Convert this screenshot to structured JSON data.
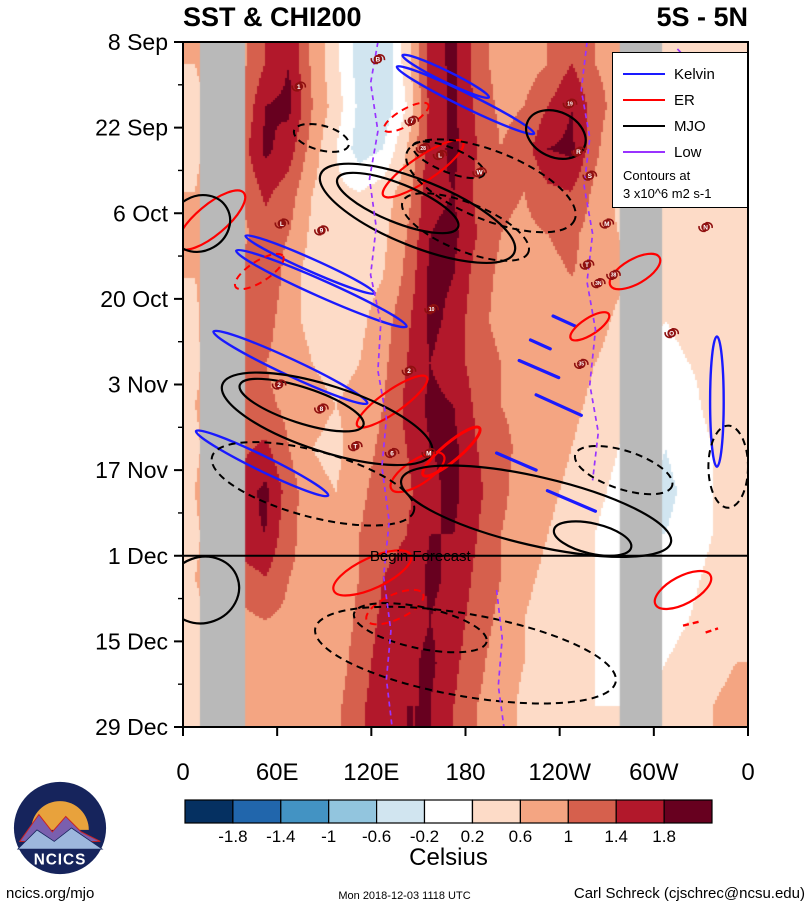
{
  "header": {
    "title": "SST & CHI200",
    "region": "5S - 5N"
  },
  "legend": {
    "items": [
      {
        "label": "Kelvin",
        "color": "#1a1aff"
      },
      {
        "label": "ER",
        "color": "#ff0000"
      },
      {
        "label": "MJO",
        "color": "#000000"
      },
      {
        "label": "Low",
        "color": "#9933ff"
      }
    ],
    "note1": "Contours at",
    "note2": "3 x10^6 m2 s-1"
  },
  "chart_data": {
    "type": "heatmap",
    "title": "SST & CHI200",
    "region_label": "5S - 5N",
    "x_axis": {
      "ticks": [
        "0",
        "60E",
        "120E",
        "180",
        "120W",
        "60W",
        "0"
      ],
      "range_deg": [
        0,
        360
      ]
    },
    "y_axis": {
      "ticks": [
        "8 Sep",
        "22 Sep",
        "6 Oct",
        "20 Oct",
        "3 Nov",
        "17 Nov",
        "1 Dec",
        "15 Dec",
        "29 Dec"
      ]
    },
    "colorbar": {
      "label": "Celsius",
      "levels": [
        -1.8,
        -1.4,
        -1,
        -0.6,
        -0.2,
        0.2,
        0.6,
        1,
        1.4,
        1.8
      ],
      "tick_labels": [
        "-1.8",
        "-1.4",
        "-1",
        "-0.6",
        "-0.2",
        "0.2",
        "0.6",
        "1",
        "1.4",
        "1.8"
      ],
      "colors": [
        "#053061",
        "#2166ac",
        "#4393c3",
        "#92c5de",
        "#d1e5f0",
        "#ffffff",
        "#fddbc7",
        "#f4a582",
        "#d6604d",
        "#b2182b",
        "#67001f"
      ]
    },
    "land_color": "#b9b9b9",
    "land_mask_frac": [
      {
        "x0": 0.03,
        "x1": 0.11
      },
      {
        "x0": 0.773,
        "x1": 0.848
      }
    ],
    "forecast_line": {
      "label": "Begin Forecast",
      "y_frac": 0.75,
      "label_x_frac": 0.42
    },
    "grid_values": [
      [
        0.6,
        0.8,
        0.9,
        1.4,
        1.8,
        0.9,
        0.3,
        -0.4,
        -0.6,
        0.4,
        1.6,
        1.9,
        1.2,
        0.8,
        0.8,
        1.0,
        1.4,
        1.0,
        0.8,
        0.6,
        0.4,
        0.6,
        0.3,
        0.5
      ],
      [
        0.5,
        0.7,
        1.0,
        1.8,
        1.9,
        1.0,
        0.4,
        -0.3,
        -0.5,
        0.2,
        1.5,
        1.9,
        1.3,
        0.9,
        1.0,
        1.4,
        1.8,
        1.2,
        0.8,
        0.5,
        0.3,
        0.4,
        0.3,
        0.4
      ],
      [
        0.5,
        0.8,
        1.2,
        1.9,
        1.6,
        0.8,
        0.2,
        -0.4,
        -0.2,
        0.6,
        1.6,
        1.9,
        1.4,
        1.0,
        1.2,
        1.8,
        1.9,
        1.1,
        0.6,
        0.4,
        0.3,
        0.5,
        0.4,
        0.4
      ],
      [
        0.6,
        0.9,
        1.0,
        1.5,
        1.2,
        0.6,
        0.3,
        0.2,
        0.4,
        0.8,
        1.7,
        1.8,
        1.3,
        1.1,
        1.0,
        1.3,
        1.4,
        0.9,
        0.5,
        0.4,
        0.3,
        0.4,
        0.4,
        0.5
      ],
      [
        0.7,
        0.8,
        0.9,
        1.2,
        1.0,
        0.5,
        0.4,
        0.3,
        0.5,
        1.0,
        1.8,
        1.9,
        1.4,
        1.0,
        0.9,
        1.0,
        1.1,
        0.8,
        0.6,
        0.4,
        0.3,
        0.3,
        0.5,
        0.6
      ],
      [
        0.6,
        0.9,
        1.1,
        1.4,
        0.8,
        0.4,
        0.3,
        0.4,
        0.6,
        1.1,
        1.9,
        1.8,
        1.2,
        0.9,
        0.8,
        0.9,
        1.0,
        0.9,
        0.7,
        0.5,
        0.2,
        0.2,
        0.4,
        0.5
      ],
      [
        0.5,
        1.0,
        1.4,
        1.2,
        0.7,
        0.5,
        0.4,
        0.5,
        0.8,
        1.3,
        1.9,
        1.7,
        1.1,
        0.9,
        0.9,
        1.0,
        0.9,
        0.8,
        0.5,
        0.3,
        0.2,
        0.3,
        0.4,
        0.4
      ],
      [
        0.5,
        0.9,
        1.2,
        1.0,
        0.8,
        0.6,
        0.5,
        0.6,
        0.9,
        1.4,
        1.8,
        1.6,
        1.2,
        1.0,
        0.8,
        0.9,
        0.8,
        0.6,
        0.4,
        0.2,
        0.1,
        0.2,
        0.3,
        0.4
      ],
      [
        0.6,
        0.8,
        1.0,
        1.1,
        0.9,
        0.7,
        0.6,
        0.7,
        1.0,
        1.5,
        1.9,
        1.8,
        1.3,
        1.0,
        0.9,
        0.8,
        0.7,
        0.5,
        0.3,
        0.1,
        -0.1,
        0.1,
        0.3,
        0.4
      ],
      [
        0.5,
        0.9,
        1.3,
        1.5,
        1.0,
        0.6,
        0.5,
        0.8,
        1.1,
        1.4,
        1.8,
        1.9,
        1.4,
        1.1,
        0.9,
        0.8,
        0.6,
        0.4,
        0.2,
        0.0,
        -0.2,
        0.0,
        0.2,
        0.3
      ],
      [
        0.6,
        1.0,
        1.6,
        1.9,
        1.2,
        0.7,
        0.6,
        0.9,
        1.2,
        1.3,
        1.7,
        1.9,
        1.5,
        1.1,
        0.8,
        0.7,
        0.5,
        0.3,
        0.1,
        -0.2,
        -0.3,
        -0.1,
        0.2,
        0.3
      ],
      [
        0.5,
        0.9,
        1.7,
        1.8,
        1.1,
        0.8,
        0.7,
        1.0,
        1.3,
        1.4,
        1.8,
        1.8,
        1.4,
        1.0,
        0.8,
        0.6,
        0.4,
        0.2,
        0.0,
        -0.2,
        -0.2,
        0.0,
        0.2,
        0.4
      ],
      [
        0.6,
        0.8,
        1.2,
        1.4,
        1.0,
        0.9,
        0.8,
        1.0,
        1.4,
        1.5,
        1.9,
        1.7,
        1.3,
        1.0,
        0.7,
        0.5,
        0.3,
        0.2,
        0.0,
        -0.1,
        -0.1,
        0.1,
        0.3,
        0.5
      ],
      [
        0.5,
        0.7,
        0.9,
        1.0,
        0.9,
        0.8,
        0.7,
        1.1,
        1.5,
        1.6,
        1.8,
        1.6,
        1.2,
        0.9,
        0.6,
        0.4,
        0.3,
        0.2,
        0.1,
        0.0,
        0.1,
        0.2,
        0.4,
        0.5
      ],
      [
        0.4,
        0.6,
        0.8,
        0.9,
        0.8,
        0.7,
        0.8,
        1.2,
        1.6,
        1.7,
        1.9,
        1.5,
        1.1,
        0.8,
        0.6,
        0.4,
        0.3,
        0.2,
        0.1,
        0.1,
        0.2,
        0.3,
        0.5,
        0.6
      ],
      [
        0.4,
        0.5,
        0.7,
        0.8,
        0.7,
        0.8,
        0.9,
        1.3,
        1.7,
        1.8,
        1.8,
        1.4,
        1.0,
        0.8,
        0.5,
        0.4,
        0.3,
        0.2,
        0.2,
        0.2,
        0.3,
        0.4,
        0.6,
        0.7
      ]
    ],
    "waves": {
      "kelvin": {
        "color": "#1a1aff",
        "ellipses": [
          {
            "cx": 0.5,
            "cy": 0.085,
            "rx": 0.135,
            "ry": 0.01,
            "rot": 26
          },
          {
            "cx": 0.465,
            "cy": 0.05,
            "rx": 0.085,
            "ry": 0.008,
            "rot": 26
          },
          {
            "cx": 0.245,
            "cy": 0.36,
            "rx": 0.165,
            "ry": 0.012,
            "rot": 24
          },
          {
            "cx": 0.225,
            "cy": 0.325,
            "rx": 0.125,
            "ry": 0.009,
            "rot": 24
          },
          {
            "cx": 0.19,
            "cy": 0.475,
            "rx": 0.15,
            "ry": 0.012,
            "rot": 25
          },
          {
            "cx": 0.14,
            "cy": 0.615,
            "rx": 0.13,
            "ry": 0.011,
            "rot": 26
          },
          {
            "cx": 0.945,
            "cy": 0.525,
            "rx": 0.012,
            "ry": 0.095,
            "rot": 0
          }
        ],
        "segments": [
          [
            0.595,
            0.465,
            0.665,
            0.49
          ],
          [
            0.625,
            0.515,
            0.705,
            0.545
          ],
          [
            0.555,
            0.6,
            0.625,
            0.625
          ],
          [
            0.645,
            0.655,
            0.73,
            0.685
          ],
          [
            0.655,
            0.4,
            0.695,
            0.415
          ],
          [
            0.615,
            0.435,
            0.65,
            0.448
          ]
        ]
      },
      "er": {
        "color": "#ff0000",
        "ellipses": [
          {
            "cx": 0.425,
            "cy": 0.185,
            "rx": 0.085,
            "ry": 0.018,
            "rot": -34
          },
          {
            "cx": 0.05,
            "cy": 0.26,
            "rx": 0.075,
            "ry": 0.022,
            "rot": -40
          },
          {
            "cx": 0.37,
            "cy": 0.525,
            "rx": 0.075,
            "ry": 0.016,
            "rot": -35
          },
          {
            "cx": 0.475,
            "cy": 0.598,
            "rx": 0.065,
            "ry": 0.013,
            "rot": -40,
            "w": 3
          },
          {
            "cx": 0.415,
            "cy": 0.628,
            "rx": 0.055,
            "ry": 0.018,
            "rot": -33
          },
          {
            "cx": 0.335,
            "cy": 0.775,
            "rx": 0.075,
            "ry": 0.022,
            "rot": -25
          },
          {
            "cx": 0.885,
            "cy": 0.8,
            "rx": 0.055,
            "ry": 0.02,
            "rot": -28
          },
          {
            "cx": 0.8,
            "cy": 0.335,
            "rx": 0.05,
            "ry": 0.018,
            "rot": -30
          },
          {
            "cx": 0.72,
            "cy": 0.415,
            "rx": 0.04,
            "ry": 0.012,
            "rot": -33
          }
        ],
        "ellipses_dashed": [
          {
            "cx": 0.395,
            "cy": 0.11,
            "rx": 0.045,
            "ry": 0.012,
            "rot": -30
          },
          {
            "cx": 0.135,
            "cy": 0.335,
            "rx": 0.05,
            "ry": 0.015,
            "rot": -33
          },
          {
            "cx": 0.375,
            "cy": 0.825,
            "rx": 0.055,
            "ry": 0.018,
            "rot": -25
          }
        ],
        "segments_dashed": [
          [
            0.885,
            0.852,
            0.915,
            0.846
          ],
          [
            0.925,
            0.862,
            0.947,
            0.856
          ]
        ]
      },
      "mjo": {
        "color": "#000000",
        "ellipses": [
          {
            "cx": 0.415,
            "cy": 0.25,
            "rx": 0.185,
            "ry": 0.048,
            "rot": 22
          },
          {
            "cx": 0.38,
            "cy": 0.235,
            "rx": 0.115,
            "ry": 0.028,
            "rot": 22
          },
          {
            "cx": 0.03,
            "cy": 0.265,
            "rx": 0.055,
            "ry": 0.04,
            "rot": -30
          },
          {
            "cx": 0.66,
            "cy": 0.135,
            "rx": 0.055,
            "ry": 0.033,
            "rot": 25
          },
          {
            "cx": 0.255,
            "cy": 0.55,
            "rx": 0.195,
            "ry": 0.048,
            "rot": 18
          },
          {
            "cx": 0.21,
            "cy": 0.53,
            "rx": 0.115,
            "ry": 0.026,
            "rot": 18
          },
          {
            "cx": 0.625,
            "cy": 0.685,
            "rx": 0.245,
            "ry": 0.05,
            "rot": 13
          },
          {
            "cx": 0.725,
            "cy": 0.725,
            "rx": 0.07,
            "ry": 0.022,
            "rot": 13
          },
          {
            "cx": 0.035,
            "cy": 0.8,
            "rx": 0.065,
            "ry": 0.048,
            "rot": -20
          }
        ],
        "ellipses_dashed": [
          {
            "cx": 0.545,
            "cy": 0.21,
            "rx": 0.16,
            "ry": 0.05,
            "rot": 22
          },
          {
            "cx": 0.5,
            "cy": 0.27,
            "rx": 0.12,
            "ry": 0.035,
            "rot": 22
          },
          {
            "cx": 0.47,
            "cy": 0.172,
            "rx": 0.068,
            "ry": 0.018,
            "rot": 22
          },
          {
            "cx": 0.245,
            "cy": 0.14,
            "rx": 0.05,
            "ry": 0.018,
            "rot": 15
          },
          {
            "cx": 0.23,
            "cy": 0.645,
            "rx": 0.185,
            "ry": 0.048,
            "rot": 15
          },
          {
            "cx": 0.78,
            "cy": 0.625,
            "rx": 0.09,
            "ry": 0.028,
            "rot": 18
          },
          {
            "cx": 0.5,
            "cy": 0.895,
            "rx": 0.27,
            "ry": 0.06,
            "rot": 10
          },
          {
            "cx": 0.42,
            "cy": 0.855,
            "rx": 0.12,
            "ry": 0.03,
            "rot": 12
          },
          {
            "cx": 0.965,
            "cy": 0.62,
            "rx": 0.035,
            "ry": 0.06,
            "rot": 0
          }
        ]
      },
      "low": {
        "color": "#9933ff",
        "polylines": [
          [
            [
              0.345,
              0.0
            ],
            [
              0.332,
              0.06
            ],
            [
              0.345,
              0.13
            ],
            [
              0.33,
              0.2
            ],
            [
              0.342,
              0.27
            ],
            [
              0.332,
              0.34
            ],
            [
              0.35,
              0.41
            ],
            [
              0.345,
              0.48
            ],
            [
              0.36,
              0.55
            ],
            [
              0.352,
              0.62
            ],
            [
              0.365,
              0.7
            ],
            [
              0.355,
              0.78
            ],
            [
              0.368,
              0.86
            ],
            [
              0.36,
              0.93
            ],
            [
              0.37,
              1.0
            ]
          ],
          [
            [
              0.715,
              0.0
            ],
            [
              0.705,
              0.07
            ],
            [
              0.72,
              0.14
            ],
            [
              0.71,
              0.21
            ],
            [
              0.725,
              0.28
            ],
            [
              0.715,
              0.35
            ],
            [
              0.73,
              0.42
            ],
            [
              0.72,
              0.5
            ],
            [
              0.735,
              0.57
            ],
            [
              0.725,
              0.64
            ]
          ],
          [
            [
              0.875,
              0.01
            ],
            [
              0.915,
              0.045
            ],
            [
              0.955,
              0.02
            ]
          ],
          [
            [
              0.555,
              0.8
            ],
            [
              0.565,
              0.87
            ],
            [
              0.558,
              0.94
            ],
            [
              0.568,
              1.0
            ]
          ]
        ]
      }
    },
    "storms": {
      "color": "#8f1010",
      "items": [
        {
          "x": 0.345,
          "y": 0.025,
          "label": "B"
        },
        {
          "x": 0.205,
          "y": 0.065,
          "label": "1"
        },
        {
          "x": 0.405,
          "y": 0.115,
          "label": "7"
        },
        {
          "x": 0.685,
          "y": 0.09,
          "label": "19"
        },
        {
          "x": 0.425,
          "y": 0.155,
          "label": "28"
        },
        {
          "x": 0.455,
          "y": 0.165,
          "label": "L"
        },
        {
          "x": 0.525,
          "y": 0.19,
          "label": "W"
        },
        {
          "x": 0.7,
          "y": 0.16,
          "label": "R"
        },
        {
          "x": 0.72,
          "y": 0.195,
          "label": "S"
        },
        {
          "x": 0.175,
          "y": 0.265,
          "label": "L"
        },
        {
          "x": 0.245,
          "y": 0.275,
          "label": "9"
        },
        {
          "x": 0.75,
          "y": 0.265,
          "label": "M"
        },
        {
          "x": 0.925,
          "y": 0.27,
          "label": "N"
        },
        {
          "x": 0.715,
          "y": 0.325,
          "label": "T"
        },
        {
          "x": 0.735,
          "y": 0.352,
          "label": "3N"
        },
        {
          "x": 0.762,
          "y": 0.34,
          "label": "38"
        },
        {
          "x": 0.44,
          "y": 0.39,
          "label": "10"
        },
        {
          "x": 0.865,
          "y": 0.425,
          "label": "O"
        },
        {
          "x": 0.705,
          "y": 0.47,
          "label": "35"
        },
        {
          "x": 0.4,
          "y": 0.48,
          "label": "2"
        },
        {
          "x": 0.17,
          "y": 0.5,
          "label": "2"
        },
        {
          "x": 0.245,
          "y": 0.535,
          "label": "8"
        },
        {
          "x": 0.305,
          "y": 0.59,
          "label": "T"
        },
        {
          "x": 0.37,
          "y": 0.6,
          "label": "6"
        },
        {
          "x": 0.435,
          "y": 0.6,
          "label": "M"
        }
      ]
    }
  },
  "logo": {
    "text": "NCICS"
  },
  "footer": {
    "left": "ncics.org/mjo",
    "center": "Mon 2018-12-03 1118 UTC",
    "right": "Carl Schreck (cjschrec@ncsu.edu)"
  }
}
